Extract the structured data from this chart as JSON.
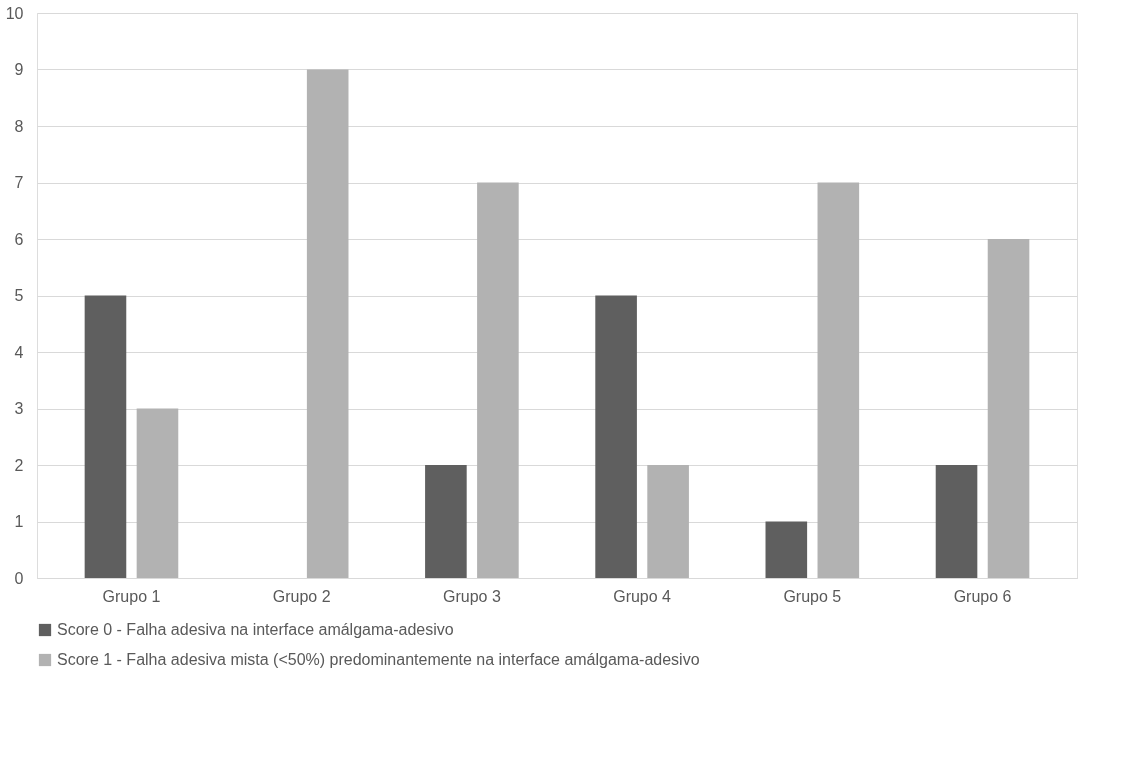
{
  "chart_data": {
    "type": "bar",
    "categories": [
      "Grupo 1",
      "Grupo 2",
      "Grupo 3",
      "Grupo 4",
      "Grupo 5",
      "Grupo 6"
    ],
    "series": [
      {
        "name": "Score 0 - Falha adesiva na interface amálgama-adesivo",
        "color": "#5f5f5f",
        "values": [
          5,
          0,
          2,
          5,
          1,
          2
        ]
      },
      {
        "name": "Score 1 - Falha adesiva mista (<50%) predominantemente na interface amálgama-adesivo",
        "color": "#b2b2b2",
        "values": [
          3,
          9,
          7,
          2,
          7,
          6
        ]
      }
    ],
    "ylim": [
      0,
      10
    ],
    "yticks": [
      0,
      1,
      2,
      3,
      4,
      5,
      6,
      7,
      8,
      9,
      10
    ],
    "grid": "y",
    "legend": "bottom"
  }
}
